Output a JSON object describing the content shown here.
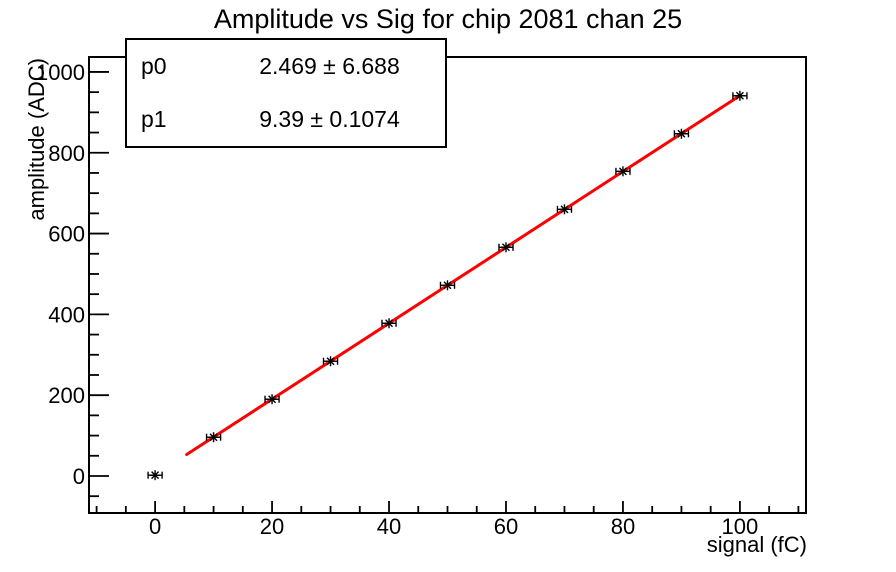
{
  "page": {
    "background": "#ffffff"
  },
  "chart_data": {
    "type": "scatter",
    "title": "Amplitude vs Sig for chip 2081 chan 25",
    "xlabel": "signal (fC)",
    "ylabel": "amplitude (ADC)",
    "xlim": [
      -11.3,
      111.3
    ],
    "ylim": [
      -91.6,
      1037
    ],
    "grid": false,
    "legend": "none",
    "frame_color": "#000000",
    "x_ticks": {
      "major": [
        0,
        20,
        40,
        60,
        80,
        100
      ],
      "minor_step": 5
    },
    "y_ticks": {
      "major": [
        0,
        200,
        400,
        600,
        800,
        1000
      ],
      "minor_step": 50
    },
    "points": {
      "x": [
        0,
        10,
        20,
        30,
        40,
        50,
        60,
        70,
        80,
        90,
        100
      ],
      "y": [
        2,
        96,
        190,
        284,
        378,
        472,
        566,
        660,
        754,
        847,
        941
      ],
      "xerr": 1.2,
      "marker": "asterisk",
      "color": "#000000"
    },
    "fit": {
      "p0": 2.469,
      "p1": 9.39,
      "x_range": [
        5.4,
        100
      ],
      "color": "#ff0000",
      "line_width": 3
    }
  },
  "stats_box": {
    "rows": [
      {
        "label": "p0",
        "value": "2.469 ± 6.688"
      },
      {
        "label": "p1",
        "value": "9.39 ± 0.1074"
      }
    ]
  }
}
